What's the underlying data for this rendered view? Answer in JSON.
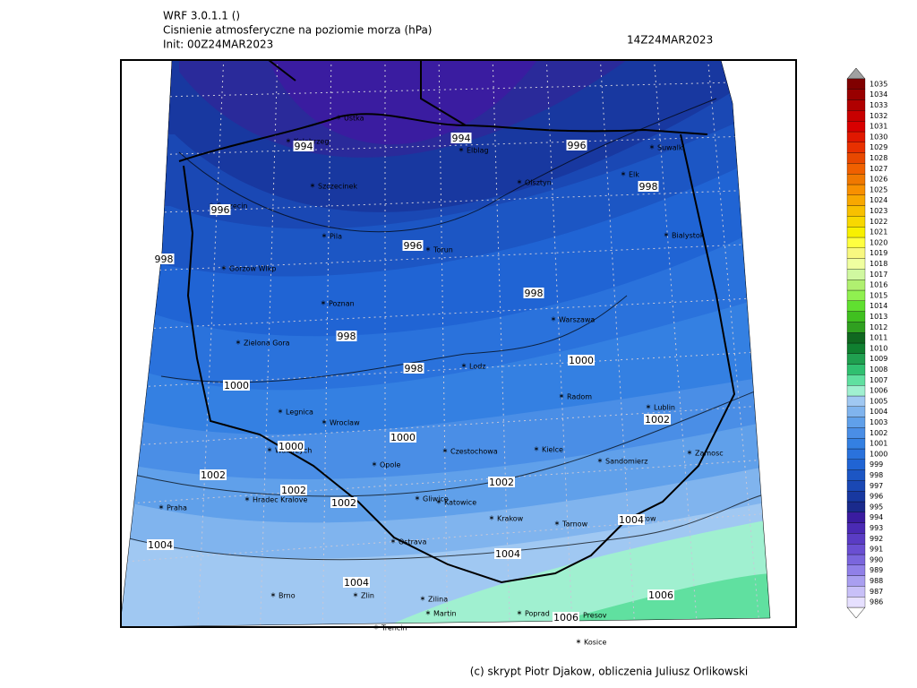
{
  "header": {
    "model": "WRF 3.0.1.1 ()",
    "title": "Cisnienie atmosferyczne na poziomie morza (hPa)",
    "init": "Init: 00Z24MAR2023",
    "valid": "14Z24MAR2023"
  },
  "footer": "(c) skrypt Piotr Djakow, obliczenia Juliusz Orlikowski",
  "cities": [
    "Ustka",
    "Kolobrzeg",
    "Elblag",
    "Suwalki",
    "Olsztyn",
    "Elk",
    "Szczecinek",
    "Szczecin",
    "Pila",
    "Torun",
    "Bialystok",
    "Gorzow Wlkp",
    "Poznan",
    "Warszawa",
    "Zielona Gora",
    "Lodz",
    "Radom",
    "Lublin",
    "Legnica",
    "Wroclaw",
    "Walbrzych",
    "Czestochowa",
    "Kielce",
    "Zamosc",
    "Opole",
    "Sandomierz",
    "Hradec Kralove",
    "Gliwice",
    "Katowice",
    "Praha",
    "Krakow",
    "Tarnow",
    "Rzeszow",
    "Ostrava",
    "Brno",
    "Zlin",
    "Zilina",
    "Martin",
    "Poprad",
    "Presov",
    "Kosice",
    "Trencin"
  ],
  "isobar_labels": [
    "994",
    "994",
    "996",
    "998",
    "996",
    "996",
    "998",
    "998",
    "998",
    "998",
    "1000",
    "1000",
    "1000",
    "1000",
    "1002",
    "1002",
    "1002",
    "1002",
    "1002",
    "1004",
    "1004",
    "1004",
    "1004",
    "1006",
    "1006"
  ],
  "colorbar": {
    "levels": [
      986,
      987,
      988,
      989,
      990,
      991,
      992,
      993,
      994,
      995,
      996,
      997,
      998,
      999,
      1000,
      1001,
      1002,
      1003,
      1004,
      1005,
      1006,
      1007,
      1008,
      1009,
      1010,
      1011,
      1012,
      1013,
      1014,
      1015,
      1016,
      1017,
      1018,
      1019,
      1020,
      1021,
      1022,
      1023,
      1024,
      1025,
      1026,
      1027,
      1028,
      1029,
      1030,
      1031,
      1032,
      1033,
      1034,
      1035
    ],
    "colors": [
      "#e6e0ff",
      "#c8c0f8",
      "#a99ff0",
      "#9080e8",
      "#7a66dd",
      "#6a4fd2",
      "#5a3cc4",
      "#4a2ab4",
      "#3a1ca0",
      "#1a2a8c",
      "#1838a0",
      "#1a48b4",
      "#1c56c4",
      "#2064d4",
      "#2a72dc",
      "#3480e2",
      "#4a8ee6",
      "#60a0ea",
      "#80b4ee",
      "#a0c8f2",
      "#a0f0d0",
      "#60e0a0",
      "#30c070",
      "#20a050",
      "#108030",
      "#106820",
      "#30a020",
      "#40c020",
      "#60e030",
      "#90f050",
      "#b0f070",
      "#d0f8a0",
      "#f0ffa0",
      "#f8f880",
      "#ffff40",
      "#f8f000",
      "#f8d800",
      "#f8c000",
      "#f8a800",
      "#f89000",
      "#f07800",
      "#f06000",
      "#e84800",
      "#e83000",
      "#e01800",
      "#d80000",
      "#c80000",
      "#b00000",
      "#980000",
      "#800000"
    ]
  }
}
